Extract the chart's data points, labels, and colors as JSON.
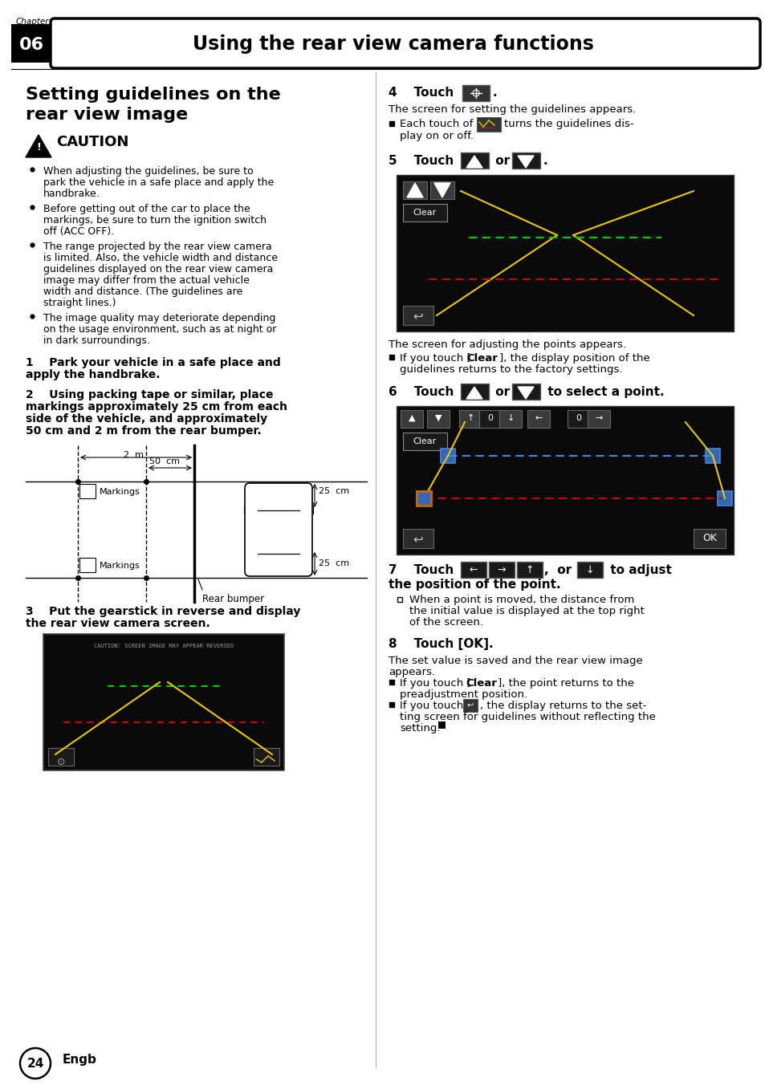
{
  "page_bg": "#ffffff",
  "chapter_num": "06",
  "chapter_title": "Using the rear view camera functions",
  "page_num": "24",
  "engb": "Engb"
}
